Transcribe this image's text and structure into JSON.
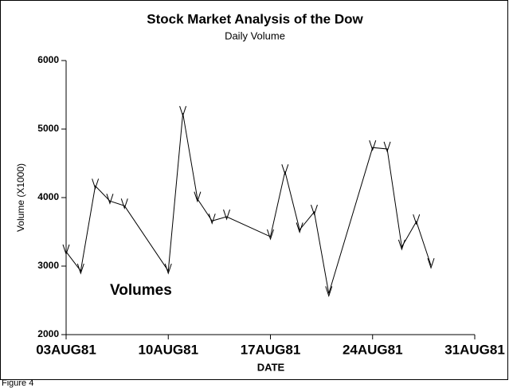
{
  "chart_data": {
    "type": "line",
    "title": "Stock Market Analysis of the Dow",
    "subtitle": "Daily Volume",
    "x_label": "DATE",
    "y_label": "Volume (X1000)",
    "annotation": "Volumes",
    "footnote": "Figure 4",
    "color": "#000000",
    "x": [
      "1981-08-03",
      "1981-08-04",
      "1981-08-05",
      "1981-08-06",
      "1981-08-07",
      "1981-08-10",
      "1981-08-11",
      "1981-08-12",
      "1981-08-13",
      "1981-08-14",
      "1981-08-17",
      "1981-08-18",
      "1981-08-19",
      "1981-08-20",
      "1981-08-21",
      "1981-08-24",
      "1981-08-25",
      "1981-08-26",
      "1981-08-27",
      "1981-08-28"
    ],
    "values": [
      3210,
      2930,
      4170,
      3950,
      3880,
      2930,
      5230,
      3980,
      3660,
      3720,
      3430,
      4380,
      3530,
      3790,
      2600,
      4730,
      4710,
      3280,
      3650,
      3010
    ],
    "xlim": [
      "1981-08-03",
      "1981-08-31"
    ],
    "xticks": [
      {
        "value": "1981-08-03",
        "label": "03AUG81"
      },
      {
        "value": "1981-08-10",
        "label": "10AUG81"
      },
      {
        "value": "1981-08-17",
        "label": "17AUG81"
      },
      {
        "value": "1981-08-24",
        "label": "24AUG81"
      },
      {
        "value": "1981-08-31",
        "label": "31AUG81"
      }
    ],
    "ylim": [
      2000,
      6000
    ],
    "yticks": [
      2000,
      3000,
      4000,
      5000,
      6000
    ]
  }
}
